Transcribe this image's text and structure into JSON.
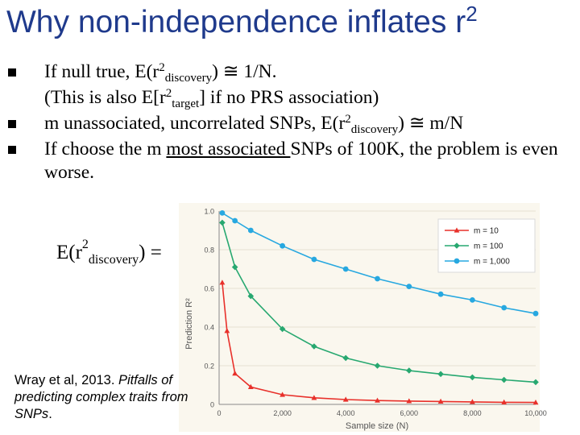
{
  "slide": {
    "title_main": "Why non-independence inflates r",
    "title_sup": "2",
    "bullets": [
      {
        "a": "If null true, E(r",
        "sup": "2",
        "sub": "discovery",
        "b": ") ≅  1/N.",
        "line2a": "(This is also E[r",
        "line2sup": "2",
        "line2sub": "target",
        "line2b": "] if no PRS association)"
      },
      {
        "a": "m unassociated, uncorrelated SNPs, E(r",
        "sup": "2",
        "sub": "discovery",
        "b": ") ≅  m/N"
      },
      {
        "a": "If choose the m ",
        "u": "most associated ",
        "b": "SNPs of 100K, the problem is even worse."
      }
    ],
    "formula": {
      "a": "E(r",
      "sup": "2",
      "sub": "discovery",
      "b": ") ="
    },
    "citation": {
      "a": "Wray et al, 2013. ",
      "italic": "Pitfalls of predicting complex traits from SNPs",
      "b": "."
    }
  },
  "chart_data": {
    "type": "line",
    "xlabel": "Sample size (N)",
    "ylabel": "Prediction R²",
    "xlim": [
      0,
      10000
    ],
    "ylim": [
      0,
      1.0
    ],
    "x_ticks": [
      "0",
      "2,000",
      "4,000",
      "6,000",
      "8,000",
      "10,000"
    ],
    "y_ticks": [
      "0",
      "0.2",
      "0.4",
      "0.6",
      "0.8",
      "1.0"
    ],
    "legend_position": "top-right",
    "series": [
      {
        "name": "m = 10",
        "color": "#e8302a",
        "marker": "triangle",
        "x": [
          100,
          250,
          500,
          1000,
          2000,
          3000,
          4000,
          5000,
          6000,
          7000,
          8000,
          9000,
          10000
        ],
        "y": [
          0.63,
          0.38,
          0.16,
          0.09,
          0.05,
          0.034,
          0.025,
          0.02,
          0.017,
          0.015,
          0.013,
          0.011,
          0.01
        ]
      },
      {
        "name": "m = 100",
        "color": "#27a870",
        "marker": "diamond",
        "x": [
          100,
          500,
          1000,
          2000,
          3000,
          4000,
          5000,
          6000,
          7000,
          8000,
          9000,
          10000
        ],
        "y": [
          0.94,
          0.71,
          0.56,
          0.39,
          0.3,
          0.24,
          0.2,
          0.175,
          0.157,
          0.14,
          0.127,
          0.115
        ]
      },
      {
        "name": "m = 1,000",
        "color": "#27a8e0",
        "marker": "circle",
        "x": [
          100,
          500,
          1000,
          2000,
          3000,
          4000,
          5000,
          6000,
          7000,
          8000,
          9000,
          10000
        ],
        "y": [
          0.99,
          0.95,
          0.9,
          0.82,
          0.75,
          0.7,
          0.65,
          0.61,
          0.57,
          0.54,
          0.5,
          0.47
        ]
      }
    ]
  }
}
